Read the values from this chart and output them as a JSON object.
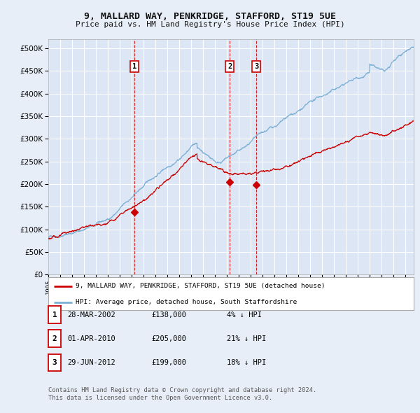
{
  "title": "9, MALLARD WAY, PENKRIDGE, STAFFORD, ST19 5UE",
  "subtitle": "Price paid vs. HM Land Registry's House Price Index (HPI)",
  "hpi_label": "HPI: Average price, detached house, South Staffordshire",
  "price_label": "9, MALLARD WAY, PENKRIDGE, STAFFORD, ST19 5UE (detached house)",
  "hpi_color": "#7bafd4",
  "price_color": "#cc0000",
  "background_color": "#e8eef7",
  "plot_bg_color": "#dce6f5",
  "grid_color": "#ffffff",
  "vline_color": "#cc0000",
  "sales": [
    {
      "date_x": 2002.23,
      "price": 138000,
      "label": "1",
      "date_str": "28-MAR-2002",
      "pct": "4%"
    },
    {
      "date_x": 2010.25,
      "price": 205000,
      "label": "2",
      "date_str": "01-APR-2010",
      "pct": "21%"
    },
    {
      "date_x": 2012.49,
      "price": 199000,
      "label": "3",
      "date_str": "29-JUN-2012",
      "pct": "18%"
    }
  ],
  "ylim": [
    0,
    520000
  ],
  "xlim_start": 1995.0,
  "xlim_end": 2025.7,
  "yticks": [
    0,
    50000,
    100000,
    150000,
    200000,
    250000,
    300000,
    350000,
    400000,
    450000,
    500000
  ],
  "footnote1": "Contains HM Land Registry data © Crown copyright and database right 2024.",
  "footnote2": "This data is licensed under the Open Government Licence v3.0."
}
